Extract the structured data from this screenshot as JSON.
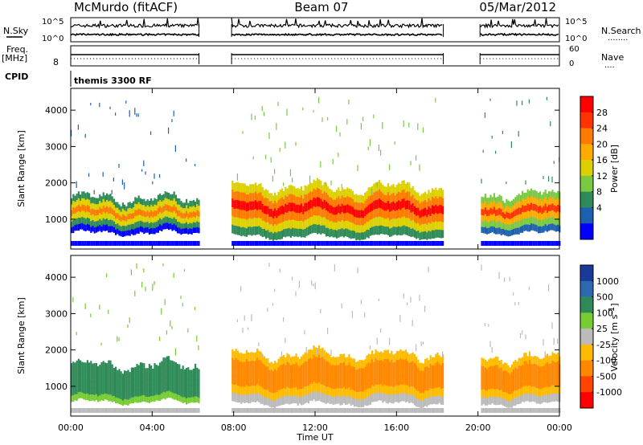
{
  "header": {
    "station": "McMurdo (fitACF)",
    "beam": "Beam 07",
    "date": "05/Mar/2012"
  },
  "noise_panel": {
    "left_label": "N.Sky",
    "right_label": "N.Search",
    "right_legend": "........",
    "ticks": [
      "10^5",
      "10^0"
    ]
  },
  "freq_panel": {
    "left_label_line1": "Freq.",
    "left_label_line2": "[MHz]",
    "left_tick": "8",
    "right_label": "Nave",
    "right_legend": "....",
    "right_ticks": [
      "60",
      "0"
    ]
  },
  "cpid": {
    "label": "CPID",
    "text": "themis 3300 RF"
  },
  "x_axis": {
    "label": "Time UT",
    "ticks": [
      "00:00",
      "04:00",
      "08:00",
      "12:00",
      "16:00",
      "20:00",
      "00:00"
    ]
  },
  "power_panel": {
    "ylabel": "Slant Range [km]",
    "cbar_label": "Power [dB]",
    "cbar_ticks": [
      "28",
      "24",
      "20",
      "16",
      "12",
      "8",
      "4"
    ],
    "cbar_colors": [
      "#ff0000",
      "#ff3300",
      "#ff7a00",
      "#ffaa00",
      "#ddd000",
      "#7ac943",
      "#2e8b57",
      "#1e60b0",
      "#0000ff"
    ],
    "yticks": [
      "4000",
      "3000",
      "2000",
      "1000"
    ]
  },
  "velocity_panel": {
    "ylabel": "Slant Range [km]",
    "cbar_label": "Velocity [m s",
    "cbar_unit_sup": "-1",
    "cbar_unit_close": "]",
    "cbar_ticks": [
      "1000",
      "500",
      "100",
      "25",
      "-25",
      "-100",
      "-500",
      "-1000"
    ],
    "cbar_colors": [
      "#1a3a9a",
      "#2c6ab0",
      "#2e8b57",
      "#77cc33",
      "#bbbbbb",
      "#ffbb00",
      "#ff8800",
      "#ff4400",
      "#ff0000"
    ],
    "yticks": [
      "4000",
      "3000",
      "2000",
      "1000"
    ]
  },
  "chart_data": {
    "type": "heatmap",
    "x_range_hours": [
      0,
      24
    ],
    "y_range_km": [
      180,
      4600
    ],
    "data_gaps_hours": [
      [
        6.3,
        7.9
      ],
      [
        18.3,
        20.1
      ]
    ],
    "power_bands": [
      {
        "start_h": 0.0,
        "end_h": 6.3,
        "low_km": 600,
        "high_km": 1500,
        "peak_db": 22
      },
      {
        "start_h": 7.9,
        "end_h": 18.3,
        "low_km": 500,
        "high_km": 1800,
        "peak_db": 30
      },
      {
        "start_h": 20.1,
        "end_h": 24.0,
        "low_km": 600,
        "high_km": 1600,
        "peak_db": 24
      }
    ],
    "velocity_bands": [
      {
        "start_h": 0.0,
        "end_h": 6.3,
        "low_km": 550,
        "high_km": 1500,
        "velocity": 150
      },
      {
        "start_h": 7.9,
        "end_h": 18.3,
        "low_km": 500,
        "high_km": 1800,
        "velocity": -300
      },
      {
        "start_h": 20.1,
        "end_h": 24.0,
        "low_km": 500,
        "high_km": 1700,
        "velocity": -350
      }
    ]
  }
}
